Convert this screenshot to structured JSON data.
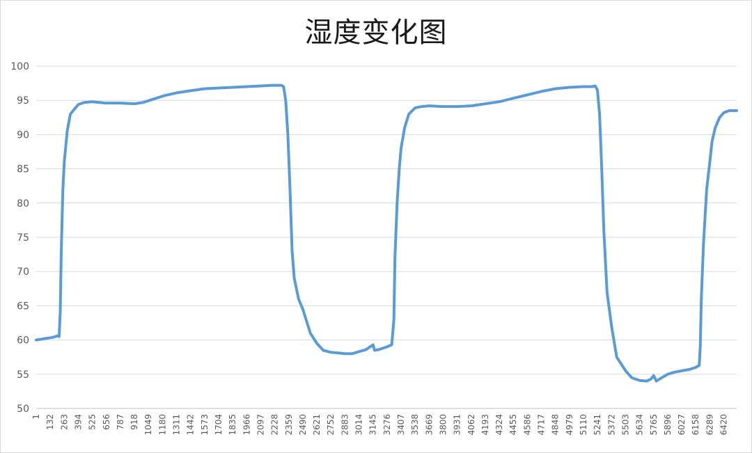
{
  "chart_data": {
    "type": "line",
    "title": "湿度变化图",
    "xlabel": "",
    "ylabel": "",
    "ylim": [
      50,
      100
    ],
    "yticks": [
      50,
      55,
      60,
      65,
      70,
      75,
      80,
      85,
      90,
      95,
      100
    ],
    "xlim": [
      1,
      6540
    ],
    "xticks": [
      "1",
      "132",
      "263",
      "394",
      "525",
      "656",
      "787",
      "918",
      "1049",
      "1180",
      "1311",
      "1442",
      "1573",
      "1704",
      "1835",
      "1966",
      "2097",
      "2228",
      "2359",
      "2490",
      "2621",
      "2752",
      "2883",
      "3014",
      "3145",
      "3276",
      "3407",
      "3538",
      "3669",
      "3800",
      "3931",
      "4062",
      "4193",
      "4324",
      "4455",
      "4586",
      "4717",
      "4848",
      "4979",
      "5110",
      "5241",
      "5372",
      "5503",
      "5634",
      "5765",
      "5896",
      "6027",
      "6158",
      "6289",
      "6420"
    ],
    "grid": true,
    "legend": "none",
    "colors": {
      "series": "#5b9bd5",
      "grid": "#d9d9d9"
    },
    "series": [
      {
        "x": [
          1,
          80,
          160,
          200,
          215,
          225,
          235,
          250,
          263,
          290,
          320,
          394,
          450,
          525,
          650,
          787,
          918,
          1000,
          1100,
          1200,
          1311,
          1442,
          1573,
          1704,
          1835,
          1966,
          2097,
          2200,
          2290,
          2310,
          2330,
          2350,
          2370,
          2390,
          2410,
          2450,
          2490,
          2560,
          2621,
          2680,
          2752,
          2820,
          2883,
          2950,
          3014,
          3080,
          3145,
          3160,
          3200,
          3276,
          3320,
          3340,
          3350,
          3370,
          3390,
          3407,
          3440,
          3480,
          3538,
          3600,
          3669,
          3800,
          3931,
          4062,
          4193,
          4324,
          4455,
          4586,
          4717,
          4848,
          4979,
          5110,
          5190,
          5220,
          5240,
          5260,
          5280,
          5300,
          5330,
          5372,
          5420,
          5503,
          5560,
          5634,
          5700,
          5740,
          5765,
          5790,
          5820,
          5896,
          5960,
          6027,
          6100,
          6158,
          6190,
          6200,
          6210,
          6230,
          6260,
          6289,
          6310,
          6340,
          6380,
          6420,
          6470,
          6540
        ],
        "values": [
          60.0,
          60.2,
          60.4,
          60.6,
          60.5,
          64,
          73,
          82,
          86,
          90.5,
          93,
          94.4,
          94.7,
          94.8,
          94.6,
          94.6,
          94.5,
          94.7,
          95.2,
          95.7,
          96.1,
          96.4,
          96.7,
          96.8,
          96.9,
          97.0,
          97.1,
          97.2,
          97.2,
          97.0,
          95,
          90,
          82,
          73,
          69,
          66,
          64.5,
          61,
          59.5,
          58.5,
          58.2,
          58.1,
          58.0,
          58.0,
          58.3,
          58.6,
          59.3,
          58.5,
          58.6,
          59.0,
          59.3,
          63,
          72,
          80,
          85,
          88,
          91,
          93,
          93.9,
          94.1,
          94.2,
          94.1,
          94.1,
          94.2,
          94.5,
          94.8,
          95.3,
          95.8,
          96.3,
          96.7,
          96.9,
          97.0,
          97.0,
          97.1,
          96.5,
          93,
          85,
          76,
          67,
          62,
          57.5,
          55.5,
          54.5,
          54.1,
          54.0,
          54.3,
          54.8,
          54.0,
          54.3,
          55.0,
          55.3,
          55.5,
          55.7,
          56.0,
          56.3,
          59,
          66,
          74,
          82,
          86,
          89,
          91,
          92.5,
          93.2,
          93.5,
          93.5
        ]
      }
    ]
  }
}
